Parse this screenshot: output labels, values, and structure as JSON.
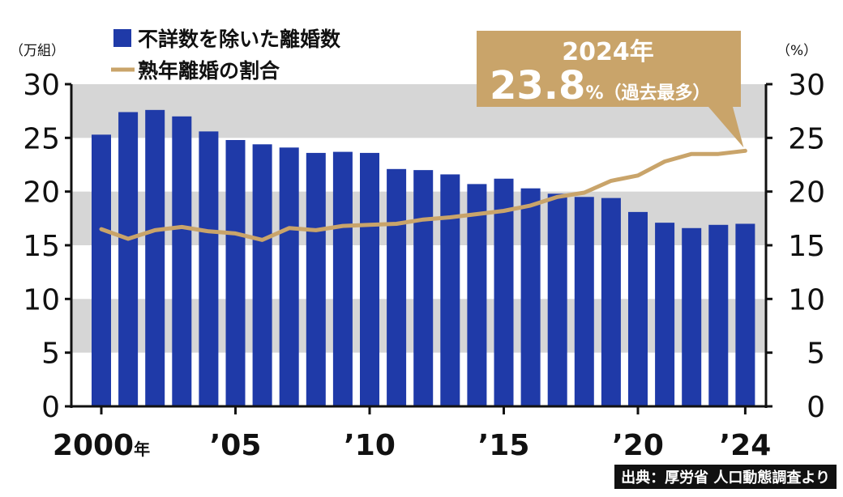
{
  "chart_data": {
    "type": "bar+line",
    "categories": [
      "2000",
      "2001",
      "2002",
      "2003",
      "2004",
      "2005",
      "2006",
      "2007",
      "2008",
      "2009",
      "2010",
      "2011",
      "2012",
      "2013",
      "2014",
      "2015",
      "2016",
      "2017",
      "2018",
      "2019",
      "2020",
      "2021",
      "2022",
      "2023",
      "2024"
    ],
    "x_tick_labels": [
      {
        "index": 0,
        "num": "2000",
        "suffix": "年"
      },
      {
        "index": 5,
        "num": "’05",
        "suffix": ""
      },
      {
        "index": 10,
        "num": "’10",
        "suffix": ""
      },
      {
        "index": 15,
        "num": "’15",
        "suffix": ""
      },
      {
        "index": 20,
        "num": "’20",
        "suffix": ""
      },
      {
        "index": 24,
        "num": "’24",
        "suffix": ""
      }
    ],
    "series": [
      {
        "name": "不詳数を除いた離婚数",
        "type": "bar",
        "axis": "left",
        "color": "#1f3aa8",
        "values": [
          25.3,
          27.4,
          27.6,
          27.0,
          25.6,
          24.8,
          24.4,
          24.1,
          23.6,
          23.7,
          23.6,
          22.1,
          22.0,
          21.6,
          20.7,
          21.2,
          20.3,
          19.8,
          19.5,
          19.4,
          18.1,
          17.1,
          16.6,
          16.9,
          17.0
        ]
      },
      {
        "name": "熟年離婚の割合",
        "type": "line",
        "axis": "right",
        "color": "#c9a46a",
        "values": [
          16.5,
          15.6,
          16.4,
          16.7,
          16.3,
          16.1,
          15.5,
          16.6,
          16.4,
          16.8,
          16.9,
          17.0,
          17.4,
          17.6,
          17.9,
          18.2,
          18.7,
          19.5,
          19.9,
          21.0,
          21.5,
          22.8,
          23.5,
          23.5,
          23.8
        ]
      }
    ],
    "left_axis": {
      "unit_label": "（万組）",
      "ylim": [
        0,
        30
      ],
      "ticks": [
        "0",
        "5",
        "10",
        "15",
        "20",
        "25",
        "30"
      ]
    },
    "right_axis": {
      "unit_label": "（%）",
      "ylim": [
        0,
        30
      ],
      "ticks": [
        "0",
        "5",
        "10",
        "15",
        "20",
        "25",
        "30"
      ]
    },
    "annotation": {
      "year_text": "2024年",
      "value_text": "23.8",
      "unit_text": "%（過去最多）",
      "box_color": "#c9a46a",
      "target_index": 24
    },
    "source": "出典：厚労省 人口動態調査より",
    "band_color": "#d6d6d6",
    "grid": false
  }
}
